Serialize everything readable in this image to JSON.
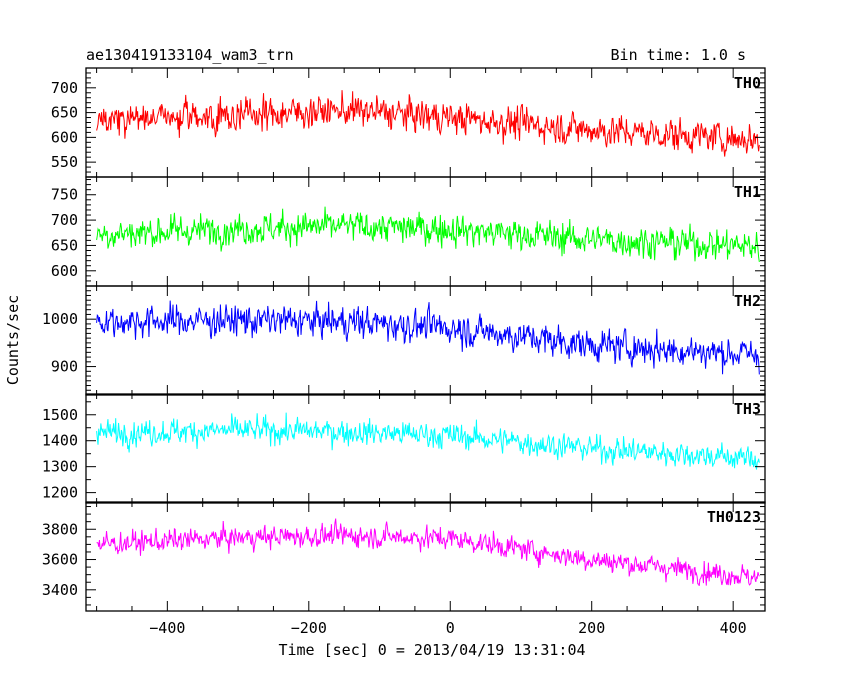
{
  "chart_data": {
    "type": "line",
    "title": "ae130419133104_wam3_trn",
    "subtitle": "Bin time: 1.0 s",
    "xlabel": "Time [sec] 0 = 2013/04/19 13:31:04",
    "ylabel": "Counts/sec",
    "xlim": [
      -515,
      445
    ],
    "x_range": [
      -500,
      437
    ],
    "x_ticks": [
      -400,
      -200,
      0,
      200,
      400
    ],
    "grid": false,
    "legend": "none",
    "panels": [
      {
        "name": "TH0",
        "color": "#ff0000",
        "ylim": [
          520,
          740
        ],
        "y_ticks": [
          550,
          600,
          650,
          700
        ],
        "trend": [
          [
            -500,
            635
          ],
          [
            -300,
            645
          ],
          [
            -150,
            655
          ],
          [
            0,
            640
          ],
          [
            200,
            615
          ],
          [
            437,
            595
          ]
        ],
        "noise": 32
      },
      {
        "name": "TH1",
        "color": "#00ff00",
        "ylim": [
          570,
          785
        ],
        "y_ticks": [
          600,
          650,
          700,
          750
        ],
        "trend": [
          [
            -500,
            672
          ],
          [
            -300,
            683
          ],
          [
            -150,
            688
          ],
          [
            0,
            682
          ],
          [
            200,
            662
          ],
          [
            437,
            648
          ]
        ],
        "noise": 30
      },
      {
        "name": "TH2",
        "color": "#0000ff",
        "ylim": [
          840,
          1070
        ],
        "y_ticks": [
          900,
          1000
        ],
        "trend": [
          [
            -500,
            995
          ],
          [
            -300,
            998
          ],
          [
            -150,
            995
          ],
          [
            0,
            982
          ],
          [
            200,
            945
          ],
          [
            437,
            925
          ]
        ],
        "noise": 33
      },
      {
        "name": "TH3",
        "color": "#00ffff",
        "ylim": [
          1160,
          1580
        ],
        "y_ticks": [
          1200,
          1300,
          1400,
          1500
        ],
        "trend": [
          [
            -500,
            1430
          ],
          [
            -300,
            1440
          ],
          [
            -150,
            1435
          ],
          [
            0,
            1420
          ],
          [
            200,
            1370
          ],
          [
            437,
            1330
          ]
        ],
        "noise": 48
      },
      {
        "name": "TH0123",
        "color": "#ff00ff",
        "ylim": [
          3260,
          3980
        ],
        "y_ticks": [
          3400,
          3600,
          3800
        ],
        "trend": [
          [
            -500,
            3700
          ],
          [
            -300,
            3745
          ],
          [
            -150,
            3760
          ],
          [
            0,
            3740
          ],
          [
            200,
            3600
          ],
          [
            437,
            3480
          ]
        ],
        "noise": 72
      }
    ]
  }
}
